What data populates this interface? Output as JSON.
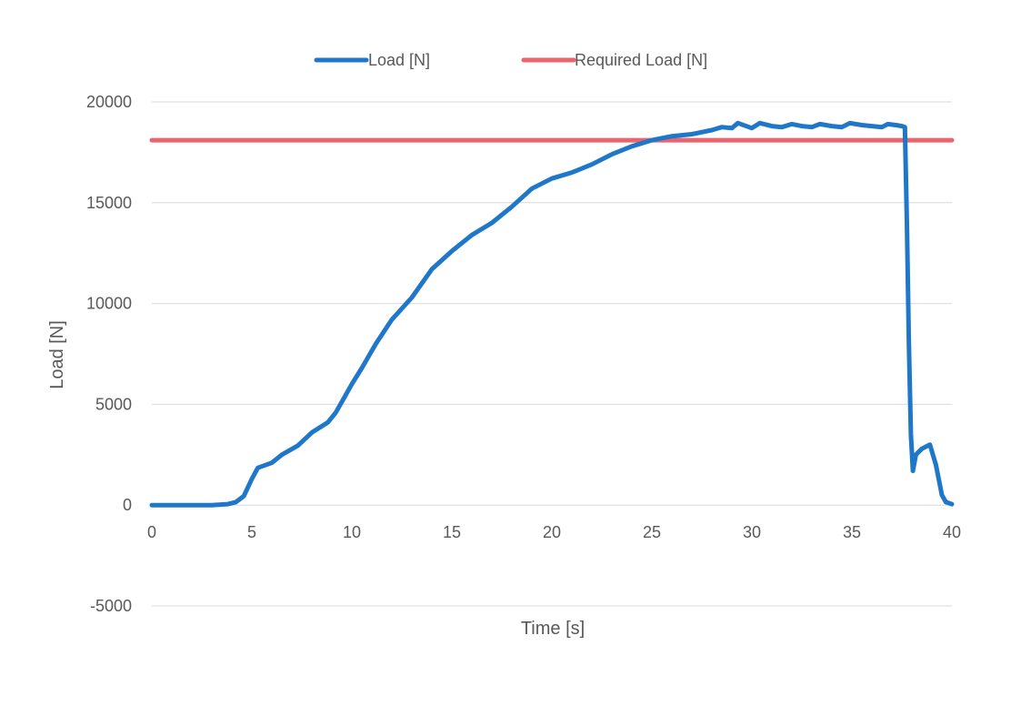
{
  "chart_data": {
    "type": "line",
    "title": "",
    "xlabel": "Time [s]",
    "ylabel": "Load [N]",
    "xlim": [
      0,
      40
    ],
    "ylim": [
      -5000,
      20000
    ],
    "x_ticks": [
      0,
      5,
      10,
      15,
      20,
      25,
      30,
      35,
      40
    ],
    "y_ticks": [
      -5000,
      0,
      5000,
      10000,
      15000,
      20000
    ],
    "x_tick_labels": [
      "0",
      "5",
      "10",
      "15",
      "20",
      "25",
      "30",
      "35",
      "40"
    ],
    "y_tick_labels": [
      "-5000",
      "0",
      "5000",
      "10000",
      "15000",
      "20000"
    ],
    "grid": "horizontal",
    "legend_position": "top",
    "series": [
      {
        "name": "Load [N]",
        "color": "#1f77c9",
        "points": [
          [
            0,
            0
          ],
          [
            1,
            0
          ],
          [
            2,
            0
          ],
          [
            3,
            0
          ],
          [
            3.8,
            50
          ],
          [
            4.2,
            150
          ],
          [
            4.6,
            450
          ],
          [
            5.0,
            1300
          ],
          [
            5.3,
            1850
          ],
          [
            6.0,
            2100
          ],
          [
            6.5,
            2500
          ],
          [
            7.3,
            2950
          ],
          [
            8.0,
            3600
          ],
          [
            8.8,
            4100
          ],
          [
            9.2,
            4600
          ],
          [
            10.0,
            6000
          ],
          [
            10.5,
            6800
          ],
          [
            11.2,
            8000
          ],
          [
            12.0,
            9200
          ],
          [
            13.0,
            10300
          ],
          [
            14.0,
            11700
          ],
          [
            15.0,
            12600
          ],
          [
            16.0,
            13400
          ],
          [
            17.0,
            14000
          ],
          [
            18.0,
            14800
          ],
          [
            19.0,
            15700
          ],
          [
            20.0,
            16200
          ],
          [
            21.0,
            16500
          ],
          [
            22.0,
            16900
          ],
          [
            23.0,
            17400
          ],
          [
            24.0,
            17800
          ],
          [
            25.0,
            18100
          ],
          [
            26.0,
            18300
          ],
          [
            27.0,
            18400
          ],
          [
            28.0,
            18600
          ],
          [
            28.5,
            18750
          ],
          [
            29.0,
            18700
          ],
          [
            29.3,
            18950
          ],
          [
            30.0,
            18700
          ],
          [
            30.4,
            18950
          ],
          [
            31.0,
            18800
          ],
          [
            31.5,
            18750
          ],
          [
            32.0,
            18900
          ],
          [
            32.5,
            18800
          ],
          [
            33.0,
            18750
          ],
          [
            33.4,
            18900
          ],
          [
            34.0,
            18800
          ],
          [
            34.5,
            18750
          ],
          [
            34.9,
            18950
          ],
          [
            35.5,
            18850
          ],
          [
            36.0,
            18800
          ],
          [
            36.5,
            18750
          ],
          [
            36.8,
            18900
          ],
          [
            37.2,
            18850
          ],
          [
            37.5,
            18800
          ],
          [
            37.65,
            18750
          ],
          [
            37.75,
            14000
          ],
          [
            37.85,
            8000
          ],
          [
            37.95,
            3500
          ],
          [
            38.05,
            1700
          ],
          [
            38.2,
            2500
          ],
          [
            38.5,
            2800
          ],
          [
            38.9,
            3000
          ],
          [
            39.2,
            2000
          ],
          [
            39.5,
            500
          ],
          [
            39.7,
            150
          ],
          [
            40.0,
            50
          ]
        ]
      },
      {
        "name": "Required Load [N]",
        "color": "#e8656e",
        "points": [
          [
            0,
            18100
          ],
          [
            40,
            18100
          ]
        ]
      }
    ]
  }
}
